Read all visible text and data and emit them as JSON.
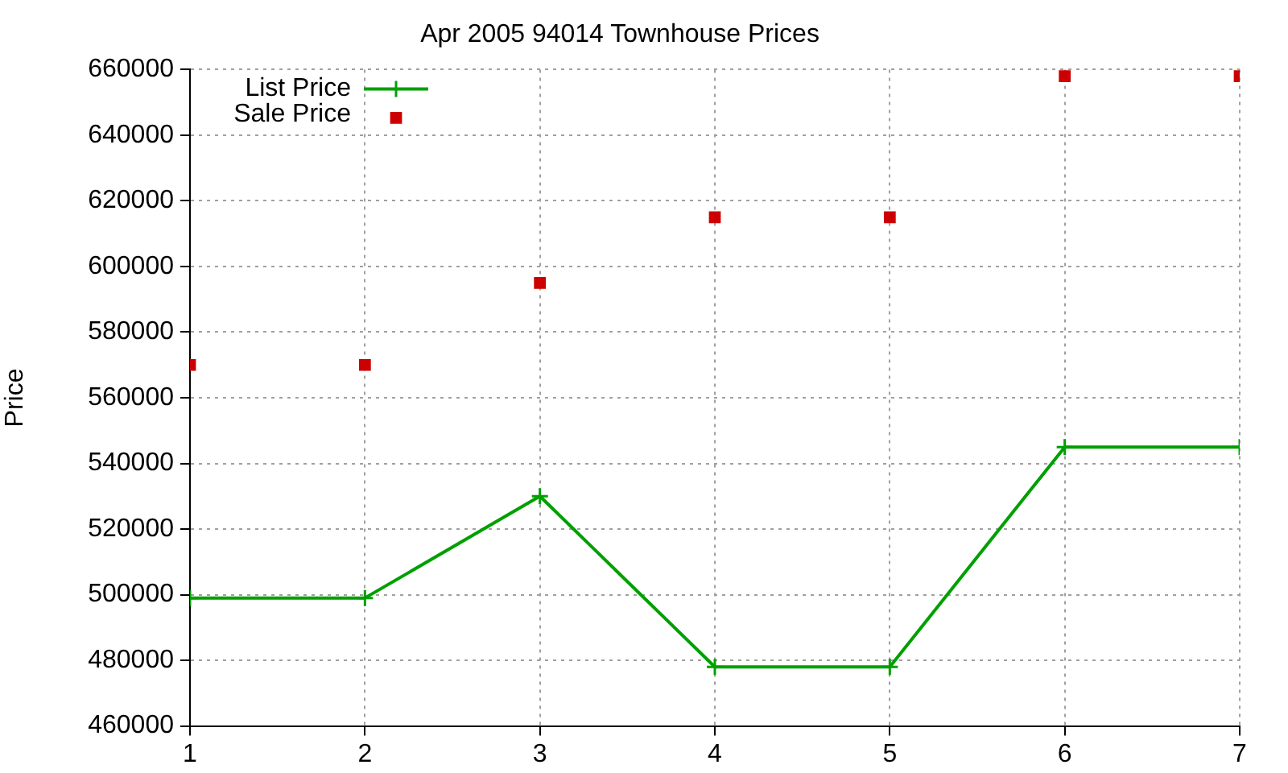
{
  "chart_data": {
    "type": "line",
    "title": "Apr 2005 94014 Townhouse Prices",
    "ylabel": "Price",
    "x": [
      1,
      2,
      3,
      4,
      5,
      6,
      7
    ],
    "series": [
      {
        "name": "List Price",
        "type": "line",
        "color": "#00a000",
        "marker": "cross",
        "values": [
          499000,
          499000,
          530000,
          478000,
          478000,
          545000,
          545000
        ]
      },
      {
        "name": "Sale Price",
        "type": "scatter",
        "color": "#cc0000",
        "marker": "square",
        "values": [
          570000,
          570000,
          595000,
          615000,
          615000,
          658000,
          658000
        ]
      }
    ],
    "xlim": [
      1,
      7
    ],
    "xticks": [
      1,
      2,
      3,
      4,
      5,
      6,
      7
    ],
    "ylim": [
      460000,
      660000
    ],
    "yticks": [
      460000,
      480000,
      500000,
      520000,
      540000,
      560000,
      580000,
      600000,
      620000,
      640000,
      660000
    ],
    "grid": true,
    "legend": "top left"
  }
}
